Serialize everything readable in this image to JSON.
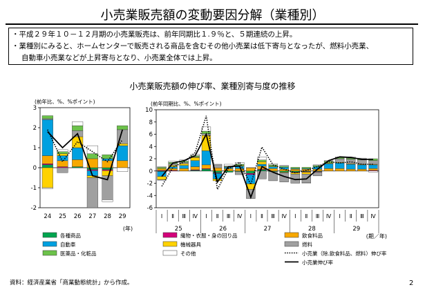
{
  "page": {
    "title": "小売業販売額の変動要因分解（業種別）",
    "bullets": [
      "・平成２９年１０－１２月期の小売業販売は、前年同期比１.９％と、５期連続の上昇。",
      "・業種別にみると、ホームセンターで販売される商品を含むその他小売業は低下寄与となったが、燃料小売業、",
      "自動車小売業などが上昇寄与となり、小売業全体では上昇。"
    ],
    "chart_title": "小売業販売額の伸び率、業種別寄与度の推移",
    "source": "資料：経済産業省「商業動態統計」から作成。",
    "page_number": "2"
  },
  "colors": {
    "general": "#00A550",
    "food": "#F7A800",
    "textile": "#D4007A",
    "auto": "#00A0E0",
    "machinery": "#FFD200",
    "fuel": "#A0A0A0",
    "drug": "#6CC24A",
    "other": "#FFFFFF"
  },
  "legend": [
    {
      "key": "general",
      "label": "各種商品",
      "type": "box"
    },
    {
      "key": "textile",
      "label": "織物・衣服・身の回り品",
      "type": "box"
    },
    {
      "key": "food",
      "label": "飲食料品",
      "type": "box"
    },
    {
      "key": "auto",
      "label": "自動車",
      "type": "box"
    },
    {
      "key": "machinery",
      "label": "機械器具",
      "type": "box"
    },
    {
      "key": "fuel",
      "label": "燃料",
      "type": "box"
    },
    {
      "key": "drug",
      "label": "医薬品・化粧品",
      "type": "box"
    },
    {
      "key": "other",
      "label": "その他",
      "type": "box"
    },
    {
      "key": "excl",
      "label": "小売業（除.飲食料品、燃料）伸び率",
      "type": "dotted"
    },
    {
      "key": "total",
      "label": "小売業伸び率",
      "type": "solid"
    }
  ],
  "chart_data": [
    {
      "type": "bar",
      "stacked": true,
      "units_label": "(前年比、%、%ポイント)",
      "x_unit_label": "(年)",
      "categories": [
        "24",
        "25",
        "26",
        "27",
        "28",
        "29"
      ],
      "ylim": [
        -2,
        3
      ],
      "yticks": [
        -2,
        -1,
        0,
        1,
        2,
        3
      ],
      "series": [
        {
          "key": "general",
          "values": [
            0.15,
            0.0,
            0.05,
            -0.1,
            -0.1,
            0.0
          ]
        },
        {
          "key": "textile",
          "values": [
            0.05,
            0.05,
            0.0,
            -0.05,
            -0.05,
            0.0
          ]
        },
        {
          "key": "food",
          "values": [
            0.4,
            0.3,
            0.35,
            0.45,
            0.35,
            0.35
          ]
        },
        {
          "key": "auto",
          "values": [
            1.8,
            0.25,
            0.6,
            -0.25,
            0.1,
            0.75
          ]
        },
        {
          "key": "machinery",
          "values": [
            -1.0,
            0.1,
            0.55,
            -0.1,
            -0.25,
            0.1
          ]
        },
        {
          "key": "fuel",
          "values": [
            0.05,
            -0.25,
            0.3,
            -1.5,
            -1.2,
            0.7
          ]
        },
        {
          "key": "drug",
          "values": [
            0.15,
            0.1,
            0.25,
            0.25,
            0.2,
            0.2
          ]
        },
        {
          "key": "other",
          "values": [
            -0.05,
            0.1,
            0.2,
            0.4,
            -0.1,
            -0.2
          ]
        }
      ],
      "lines": [
        {
          "key": "total",
          "values": [
            1.8,
            1.0,
            1.7,
            -0.4,
            -0.6,
            1.9
          ]
        },
        {
          "key": "excl",
          "values": [
            1.9,
            0.3,
            1.3,
            0.8,
            0.3,
            1.4
          ]
        }
      ]
    },
    {
      "type": "bar",
      "stacked": true,
      "units_label": "(前年同期比、%、%ポイント)",
      "x_unit_label": "(期／年)",
      "categories": [
        "Ⅰ",
        "Ⅱ",
        "Ⅲ",
        "Ⅳ",
        "Ⅰ",
        "Ⅱ",
        "Ⅲ",
        "Ⅳ",
        "Ⅰ",
        "Ⅱ",
        "Ⅲ",
        "Ⅳ",
        "Ⅰ",
        "Ⅱ",
        "Ⅲ",
        "Ⅳ",
        "Ⅰ",
        "Ⅱ",
        "Ⅲ",
        "Ⅳ"
      ],
      "year_groups": [
        {
          "label": "25",
          "start": 0,
          "count": 4
        },
        {
          "label": "26",
          "start": 4,
          "count": 4
        },
        {
          "label": "27",
          "start": 8,
          "count": 4
        },
        {
          "label": "28",
          "start": 12,
          "count": 4
        },
        {
          "label": "29",
          "start": 16,
          "count": 4
        }
      ],
      "ylim": [
        -6,
        10
      ],
      "yticks": [
        -6,
        -4,
        -2,
        0,
        2,
        4,
        6,
        8,
        10
      ],
      "series": [
        {
          "key": "general",
          "values": [
            -0.1,
            0.0,
            0.0,
            0.1,
            0.3,
            -0.3,
            -0.2,
            -0.1,
            -0.4,
            0.2,
            -0.1,
            -0.2,
            -0.2,
            -0.1,
            -0.1,
            0.0,
            0.0,
            0.0,
            0.0,
            0.0
          ]
        },
        {
          "key": "textile",
          "values": [
            0.1,
            0.1,
            0.0,
            0.1,
            0.1,
            -0.1,
            0.0,
            0.0,
            -0.2,
            0.1,
            0.0,
            0.0,
            -0.1,
            -0.1,
            -0.1,
            0.0,
            0.0,
            0.0,
            0.0,
            0.1
          ]
        },
        {
          "key": "food",
          "values": [
            0.3,
            0.3,
            0.4,
            0.5,
            0.6,
            0.5,
            0.4,
            0.4,
            0.5,
            0.5,
            0.4,
            0.3,
            0.3,
            0.3,
            0.3,
            0.4,
            0.4,
            0.3,
            0.3,
            0.3
          ]
        },
        {
          "key": "auto",
          "values": [
            -0.8,
            0.3,
            0.5,
            1.0,
            2.3,
            -0.9,
            0.2,
            0.4,
            -1.5,
            0.3,
            0.3,
            0.3,
            0.1,
            0.1,
            0.4,
            0.8,
            0.9,
            0.8,
            0.7,
            0.6
          ]
        },
        {
          "key": "machinery",
          "values": [
            -0.5,
            0.2,
            0.3,
            0.5,
            2.5,
            -0.3,
            0.0,
            0.1,
            -0.9,
            0.4,
            0.1,
            -0.1,
            -0.2,
            -0.3,
            0.0,
            0.1,
            0.1,
            0.1,
            0.1,
            0.1
          ]
        },
        {
          "key": "fuel",
          "values": [
            -0.1,
            0.3,
            0.2,
            0.1,
            0.3,
            0.5,
            0.1,
            -0.5,
            -1.5,
            -1.3,
            -1.5,
            -1.5,
            -1.5,
            -1.4,
            -0.6,
            0.0,
            0.6,
            0.7,
            0.7,
            0.6
          ]
        },
        {
          "key": "drug",
          "values": [
            0.2,
            0.2,
            0.2,
            0.2,
            0.4,
            0.0,
            0.1,
            0.2,
            0.0,
            0.3,
            0.2,
            0.2,
            0.2,
            0.2,
            0.2,
            0.3,
            0.2,
            0.2,
            0.2,
            0.3
          ]
        },
        {
          "key": "other",
          "values": [
            0.1,
            0.2,
            0.2,
            0.2,
            0.7,
            0.1,
            0.3,
            0.3,
            0.1,
            0.5,
            0.2,
            0.1,
            0.0,
            -0.1,
            0.1,
            0.1,
            0.1,
            0.2,
            0.1,
            -0.2
          ]
        }
      ],
      "lines": [
        {
          "key": "total",
          "values": [
            -0.9,
            1.3,
            1.7,
            2.5,
            6.0,
            -1.8,
            0.7,
            0.8,
            -4.3,
            0.7,
            -0.2,
            -0.9,
            -1.4,
            -1.3,
            0.3,
            1.7,
            2.3,
            2.2,
            1.9,
            1.9
          ]
        },
        {
          "key": "excl",
          "values": [
            -2.5,
            0.6,
            1.5,
            3.0,
            9.0,
            -3.0,
            0.4,
            1.4,
            -2.2,
            3.9,
            1.0,
            0.3,
            -0.3,
            0.1,
            0.7,
            1.5,
            1.3,
            1.5,
            1.1,
            1.1
          ]
        }
      ]
    }
  ]
}
